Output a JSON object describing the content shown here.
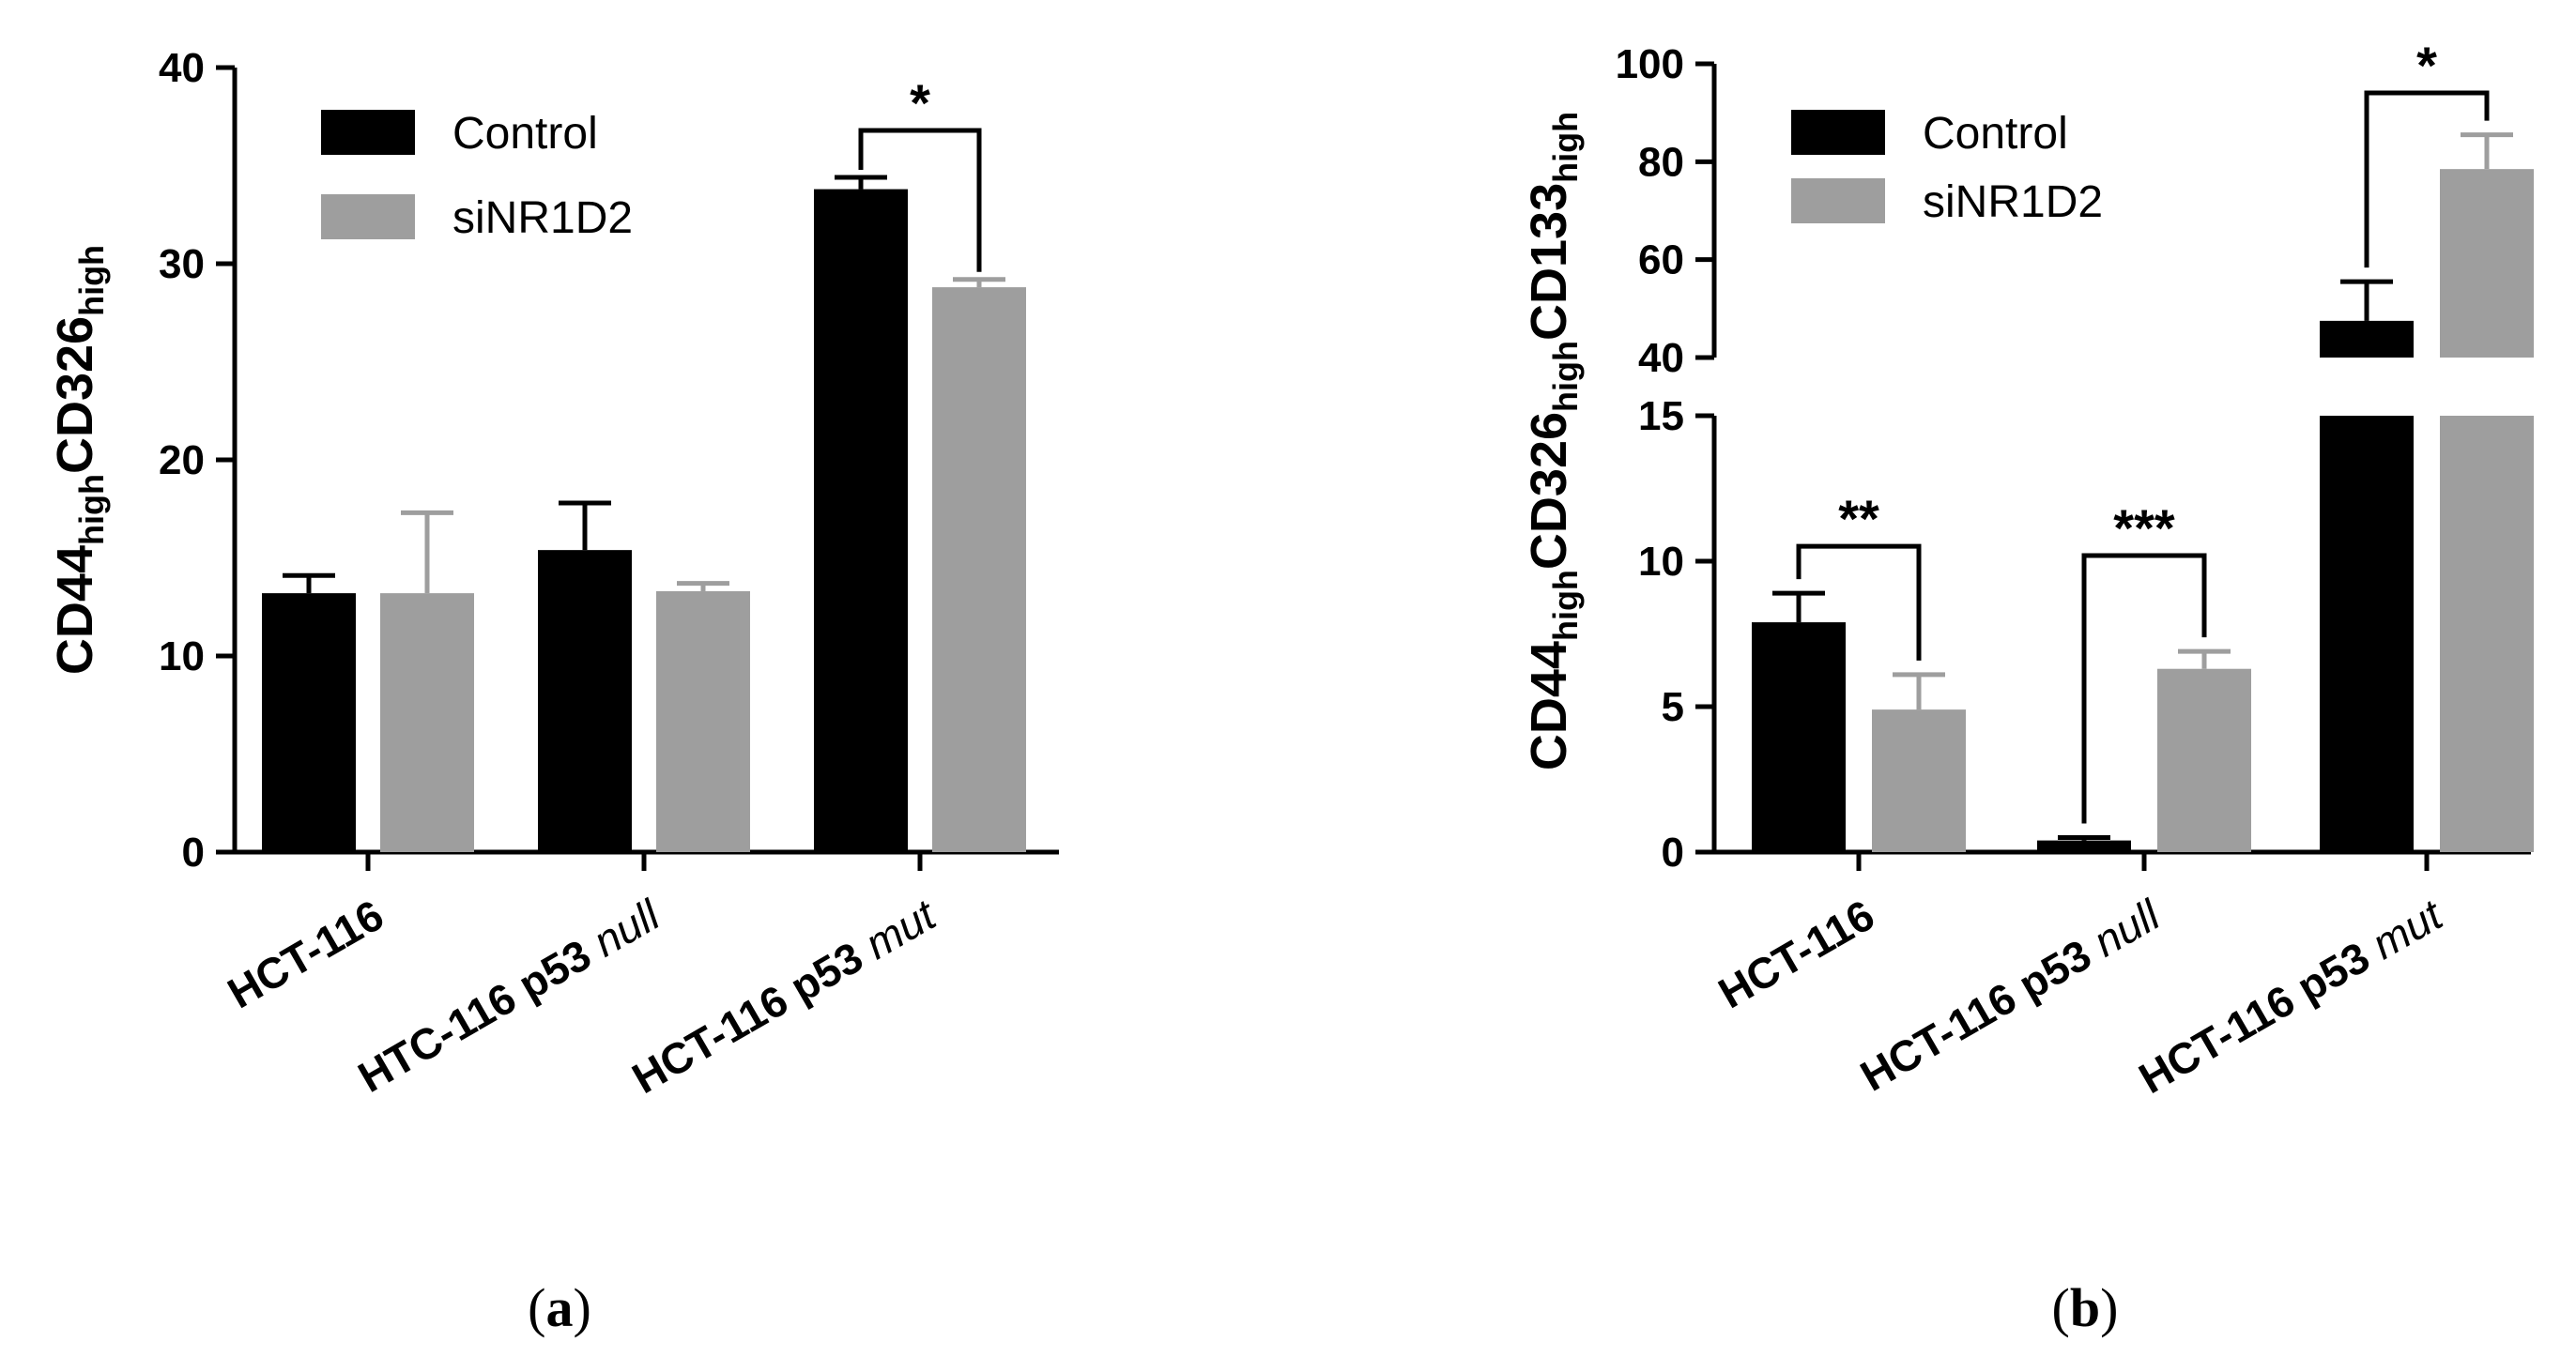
{
  "colors": {
    "control": "#000000",
    "siNR1D2": "#9e9e9e"
  },
  "chart_data": [
    {
      "type": "bar",
      "panel": "(a)",
      "panel_paren_open": "(",
      "panel_letter": "a",
      "panel_paren_close": ")",
      "ylabel_parts": [
        {
          "text": "CD44",
          "sub": false
        },
        {
          "text": "high",
          "sub": true
        },
        {
          "text": "CD326",
          "sub": false
        },
        {
          "text": "high",
          "sub": true
        }
      ],
      "ylim": [
        0,
        40
      ],
      "yticks": [
        0,
        10,
        20,
        30,
        40
      ],
      "categories": [
        {
          "main": "HCT-116",
          "italic": ""
        },
        {
          "main": "HTC-116 p53 ",
          "italic": "null"
        },
        {
          "main": "HCT-116 p53 ",
          "italic": "mut"
        }
      ],
      "series": [
        {
          "name": "Control",
          "values": [
            13.2,
            15.4,
            33.8
          ],
          "errors": [
            0.9,
            2.4,
            0.6
          ]
        },
        {
          "name": "siNR1D2",
          "values": [
            13.2,
            13.3,
            28.8
          ],
          "errors": [
            4.1,
            0.4,
            0.4
          ]
        }
      ],
      "legend": [
        "Control",
        "siNR1D2"
      ],
      "legend_position": "top-left",
      "significance": [
        {
          "category": 2,
          "label": "*"
        }
      ]
    },
    {
      "type": "bar",
      "panel": "(b)",
      "panel_paren_open": "(",
      "panel_letter": "b",
      "panel_paren_close": ")",
      "ylabel_parts": [
        {
          "text": "CD44",
          "sub": false
        },
        {
          "text": "high",
          "sub": true
        },
        {
          "text": "CD326",
          "sub": false
        },
        {
          "text": "high",
          "sub": true
        },
        {
          "text": "CD133",
          "sub": false
        },
        {
          "text": "high",
          "sub": true
        }
      ],
      "broken_axis": true,
      "lower_ylim": [
        0,
        15
      ],
      "lower_yticks": [
        0,
        5,
        10,
        15
      ],
      "upper_ylim": [
        40,
        100
      ],
      "upper_yticks": [
        40,
        60,
        80,
        100
      ],
      "categories": [
        {
          "main": "HCT-116",
          "italic": ""
        },
        {
          "main": "HCT-116 p53 ",
          "italic": "null"
        },
        {
          "main": "HCT-116 p53 ",
          "italic": "mut"
        }
      ],
      "series": [
        {
          "name": "Control",
          "values": [
            7.9,
            0.4,
            47.5
          ],
          "errors": [
            1.0,
            0.1,
            8.0
          ]
        },
        {
          "name": "siNR1D2",
          "values": [
            4.9,
            6.3,
            78.5
          ],
          "errors": [
            1.2,
            0.6,
            7.0
          ]
        }
      ],
      "legend": [
        "Control",
        "siNR1D2"
      ],
      "legend_position": "top-left",
      "significance": [
        {
          "category": 0,
          "label": "**"
        },
        {
          "category": 1,
          "label": "***"
        },
        {
          "category": 2,
          "label": "*"
        }
      ]
    }
  ]
}
